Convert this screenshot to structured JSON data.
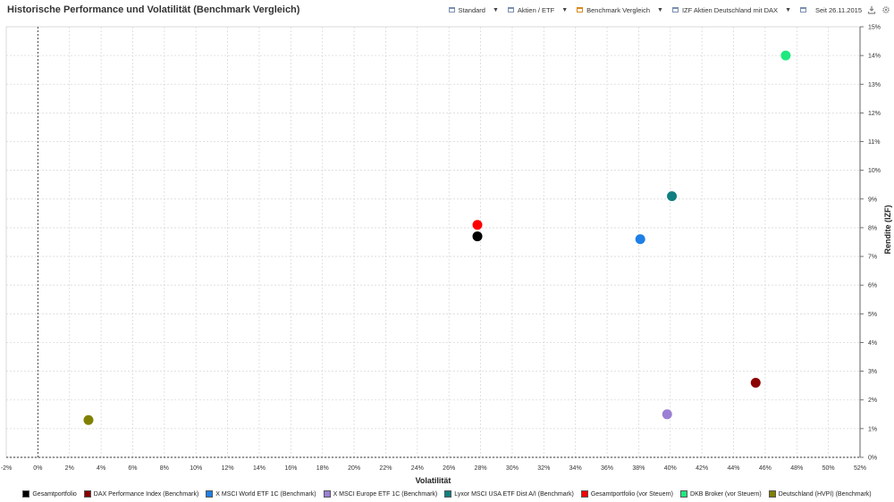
{
  "header": {
    "title": "Historische Performance und Volatilität (Benchmark Vergleich)",
    "toolbar": [
      {
        "label": "Standard",
        "icon": "calendar-icon",
        "accent": "#7a8fb0"
      },
      {
        "label": "Aktien / ETF",
        "icon": "calendar-icon",
        "accent": "#7a8fb0"
      },
      {
        "label": "Benchmark Vergleich",
        "icon": "calendar-icon",
        "accent": "#d98a1e"
      },
      {
        "label": "IZF Aktien Deutschland mit DAX",
        "icon": "calendar-icon",
        "accent": "#7a8fb0"
      },
      {
        "label": "Seit 26.11.2015",
        "icon": "calendar-icon",
        "accent": "#7a8fb0"
      }
    ],
    "buttons": {
      "export": "download-icon",
      "settings": "gear-icon"
    }
  },
  "chart_data": {
    "type": "scatter",
    "title": "Historische Performance und Volatilität (Benchmark Vergleich)",
    "xlabel": "Volatilität",
    "ylabel": "Rendite (IZF)",
    "xlim": [
      -2,
      52
    ],
    "ylim": [
      0,
      15
    ],
    "xticks": [
      -2,
      0,
      2,
      4,
      6,
      8,
      10,
      12,
      14,
      16,
      18,
      20,
      22,
      24,
      26,
      28,
      30,
      32,
      34,
      36,
      38,
      40,
      42,
      44,
      46,
      48,
      50,
      52
    ],
    "yticks": [
      0,
      1,
      2,
      3,
      4,
      5,
      6,
      7,
      8,
      9,
      10,
      11,
      12,
      13,
      14,
      15
    ],
    "tick_suffix": "%",
    "grid": true,
    "legend_position": "bottom",
    "series": [
      {
        "name": "Gesamtportfolio",
        "x": 27.8,
        "y": 7.7,
        "color": "#000000"
      },
      {
        "name": "DAX Performance Index (Benchmark)",
        "x": 45.4,
        "y": 2.6,
        "color": "#8b0000"
      },
      {
        "name": "X MSCI World ETF 1C (Benchmark)",
        "x": 38.1,
        "y": 7.6,
        "color": "#1e7fe6"
      },
      {
        "name": "X MSCI Europe ETF 1C (Benchmark)",
        "x": 39.8,
        "y": 1.5,
        "color": "#9b7fd4"
      },
      {
        "name": "Lyxor MSCI USA ETF Dist A/I (Benchmark)",
        "x": 40.1,
        "y": 9.1,
        "color": "#0f7f80"
      },
      {
        "name": "Gesamtportfolio (vor Steuern)",
        "x": 27.8,
        "y": 8.1,
        "color": "#ff0000"
      },
      {
        "name": "DKB Broker (vor Steuern)",
        "x": 47.3,
        "y": 14.0,
        "color": "#1fe87f"
      },
      {
        "name": "Deutschland (HVPI) (Benchmark)",
        "x": 3.2,
        "y": 1.3,
        "color": "#808000"
      }
    ]
  }
}
